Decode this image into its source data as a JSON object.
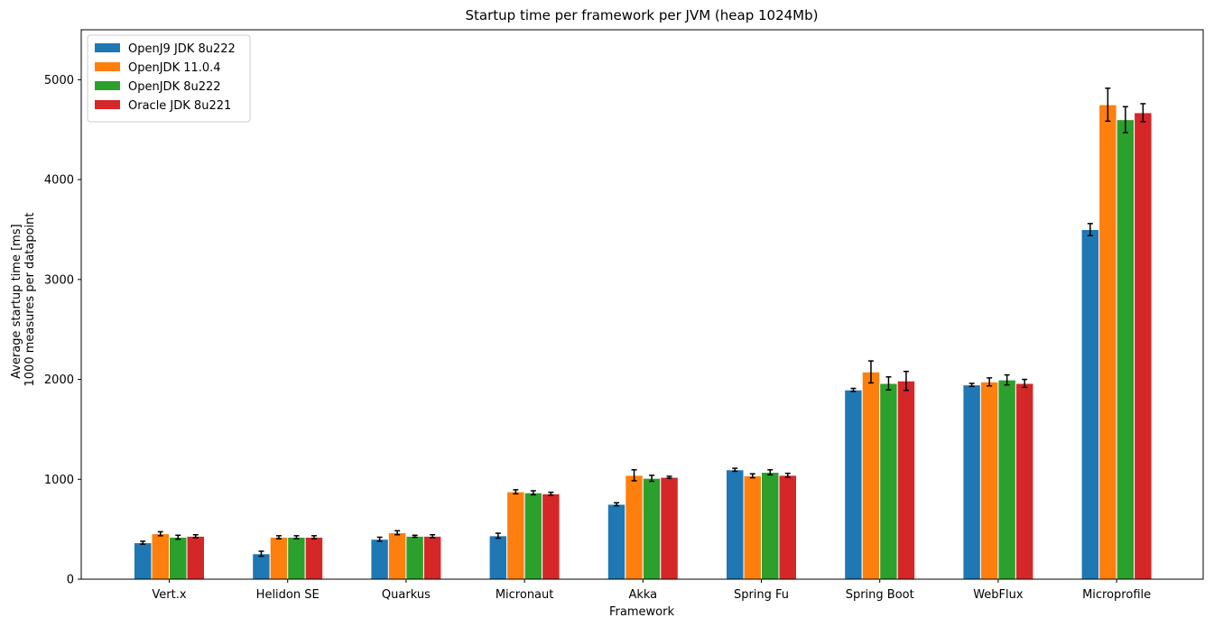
{
  "chart_data": {
    "type": "bar",
    "title": "Startup time per framework per JVM (heap 1024Mb)",
    "xlabel": "Framework",
    "ylabel": [
      "Average startup time [ms]",
      "1000 measures per datapoint"
    ],
    "ylim": [
      0,
      5500
    ],
    "yticks": [
      0,
      1000,
      2000,
      3000,
      4000,
      5000
    ],
    "grid": false,
    "legend_position": "top-left",
    "categories": [
      "Vert.x",
      "Helidon SE",
      "Quarkus",
      "Micronaut",
      "Akka",
      "Spring Fu",
      "Spring Boot",
      "WebFlux",
      "Microprofile"
    ],
    "series": [
      {
        "name": "OpenJ9 JDK 8u222",
        "color": "#1f77b4",
        "values": [
          365,
          255,
          400,
          435,
          750,
          1095,
          1895,
          1945,
          3500
        ],
        "errors": [
          15,
          25,
          20,
          25,
          15,
          15,
          15,
          15,
          60
        ]
      },
      {
        "name": "OpenJDK 11.0.4",
        "color": "#ff7f0e",
        "values": [
          455,
          420,
          465,
          875,
          1040,
          1035,
          2075,
          1975,
          4750
        ],
        "errors": [
          20,
          15,
          20,
          20,
          55,
          20,
          110,
          40,
          165
        ]
      },
      {
        "name": "OpenJDK 8u222",
        "color": "#2ca02c",
        "values": [
          420,
          420,
          430,
          865,
          1010,
          1070,
          1960,
          1995,
          4600
        ],
        "errors": [
          20,
          15,
          10,
          20,
          30,
          25,
          65,
          50,
          130
        ]
      },
      {
        "name": "Oracle JDK 8u221",
        "color": "#d62728",
        "values": [
          430,
          420,
          430,
          855,
          1020,
          1040,
          1985,
          1960,
          4670
        ],
        "errors": [
          15,
          15,
          15,
          15,
          10,
          20,
          95,
          40,
          90
        ]
      }
    ]
  }
}
